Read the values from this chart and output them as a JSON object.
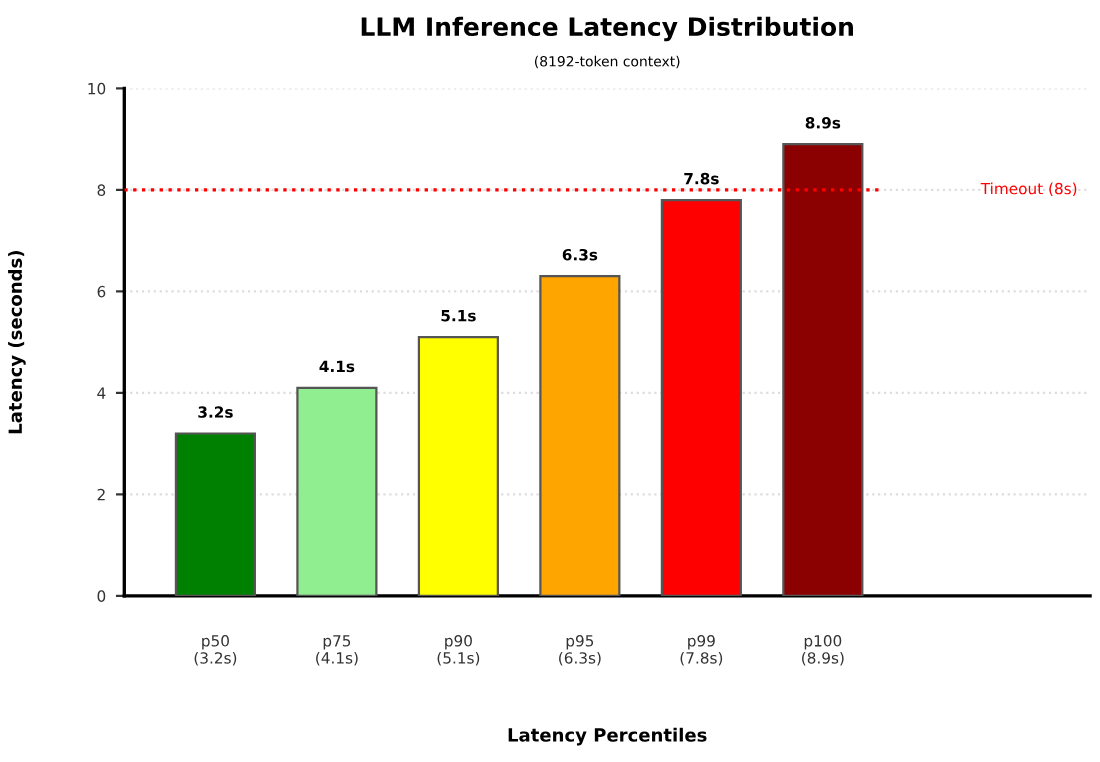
{
  "chart_data": {
    "type": "bar",
    "title": "LLM Inference Latency Distribution",
    "subtitle": "(8192-token context)",
    "xlabel": "Latency Percentiles",
    "ylabel": "Latency (seconds)",
    "categories": [
      "p50\n(3.2s)",
      "p75\n(4.1s)",
      "p90\n(5.1s)",
      "p95\n(6.3s)",
      "p99\n(7.8s)",
      "p100\n(8.9s)"
    ],
    "values": [
      3.2,
      4.1,
      5.1,
      6.3,
      7.8,
      8.9
    ],
    "colors": [
      "#008000",
      "#90ee90",
      "#ffff00",
      "#ffa500",
      "#ff0000",
      "#8b0000"
    ],
    "value_labels": [
      "3.2s",
      "4.1s",
      "5.1s",
      "6.3s",
      "7.8s",
      "8.9s"
    ],
    "ylim": [
      0,
      10
    ],
    "yticks": [
      0,
      2,
      4,
      6,
      8,
      10
    ],
    "grid": "y",
    "ref_lines": [
      {
        "axis": "y",
        "value": 8,
        "label": "Timeout (8s)",
        "color": "#ff0000",
        "line_style": "dotted"
      }
    ]
  }
}
